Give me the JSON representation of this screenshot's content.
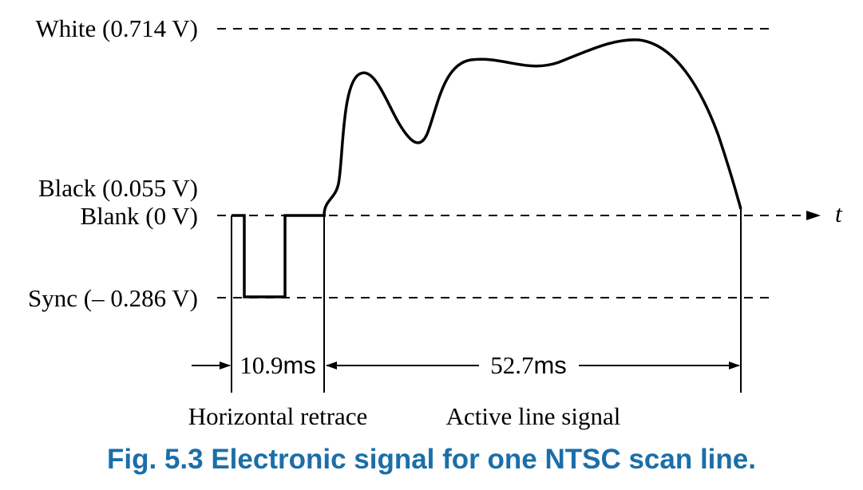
{
  "levels": {
    "white": "White (0.714 V)",
    "black": "Black (0.055 V)",
    "blank": "Blank (0 V)",
    "sync": "Sync (– 0.286 V)"
  },
  "axis": {
    "time_label": "t"
  },
  "durations": {
    "retrace": {
      "value": "10.9",
      "unit": "ms"
    },
    "active": {
      "value": "52.7",
      "unit": "ms"
    }
  },
  "regions": {
    "retrace_label": "Horizontal retrace",
    "active_label": "Active line signal"
  },
  "caption": "Fig. 5.3 Electronic signal for one NTSC scan line."
}
